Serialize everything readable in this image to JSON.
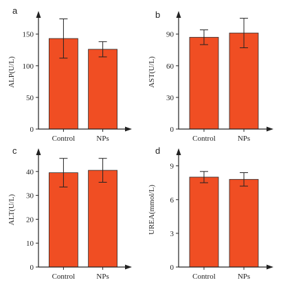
{
  "colors": {
    "bar": "#F04E23",
    "bar_edge": "#2a2a2a",
    "axis": "#222222"
  },
  "chart_data": [
    {
      "type": "bar",
      "panel_label": "a",
      "categories": [
        "Control",
        "NPs"
      ],
      "values": [
        143,
        126
      ],
      "errors": [
        31,
        12
      ],
      "ylabel": "ALP(U/L)",
      "ylim": [
        0,
        180
      ],
      "yticks": [
        0,
        50,
        100,
        150
      ],
      "grid": false,
      "legend": false
    },
    {
      "type": "bar",
      "panel_label": "b",
      "categories": [
        "Control",
        "NPs"
      ],
      "values": [
        87,
        91
      ],
      "errors": [
        7,
        14
      ],
      "ylabel": "AST(U/L)",
      "ylim": [
        0,
        108
      ],
      "yticks": [
        0,
        30,
        60,
        90
      ],
      "grid": false,
      "legend": false
    },
    {
      "type": "bar",
      "panel_label": "c",
      "categories": [
        "Control",
        "NPs"
      ],
      "values": [
        39.5,
        40.5
      ],
      "errors": [
        6,
        5
      ],
      "ylabel": "ALT(U/L)",
      "ylim": [
        0,
        48
      ],
      "yticks": [
        0,
        10,
        20,
        30,
        40
      ],
      "grid": false,
      "legend": false
    },
    {
      "type": "bar",
      "panel_label": "d",
      "categories": [
        "Control",
        "NPs"
      ],
      "values": [
        8.0,
        7.8
      ],
      "errors": [
        0.5,
        0.6
      ],
      "ylabel": "UREA(mmol/L)",
      "ylim": [
        0,
        10.2
      ],
      "yticks": [
        0,
        3,
        6,
        9
      ],
      "grid": false,
      "legend": false
    }
  ]
}
